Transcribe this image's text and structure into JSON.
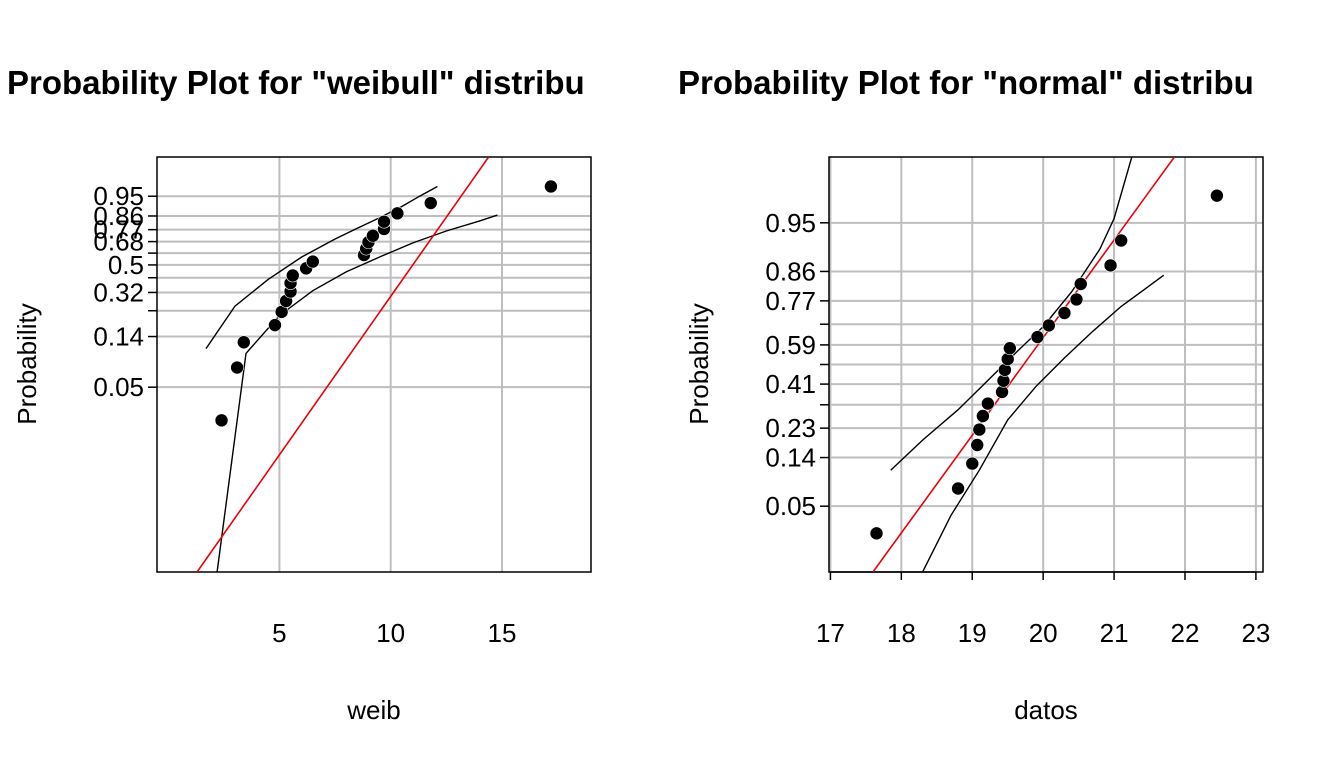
{
  "chart_data": [
    {
      "type": "scatter",
      "title": "Probability Plot for \"weibull\" distribu",
      "xlabel": "weib",
      "ylabel": "Probability",
      "x_ticks": [
        5,
        10,
        15
      ],
      "x_grid": [
        5,
        10,
        15
      ],
      "xlim": [
        -0.5,
        19
      ],
      "y_scale": "weibull",
      "ylim": [
        0.0,
        0.999
      ],
      "y_tick_labels": [
        "0.05",
        "0.14",
        "0.32",
        "0.5",
        "0.68",
        "0.77",
        "0.86",
        "0.95"
      ],
      "y_tick_values": [
        0.05,
        0.14,
        0.32,
        0.5,
        0.68,
        0.77,
        0.86,
        0.95
      ],
      "y_unlabeled_ticks": [
        0.23,
        0.41,
        0.59
      ],
      "grid": true,
      "points": [
        {
          "x": 2.4,
          "y": 0.025
        },
        {
          "x": 3.1,
          "y": 0.075
        },
        {
          "x": 3.4,
          "y": 0.125
        },
        {
          "x": 4.8,
          "y": 0.175
        },
        {
          "x": 5.1,
          "y": 0.225
        },
        {
          "x": 5.3,
          "y": 0.275
        },
        {
          "x": 5.5,
          "y": 0.325
        },
        {
          "x": 5.5,
          "y": 0.375
        },
        {
          "x": 5.6,
          "y": 0.425
        },
        {
          "x": 6.2,
          "y": 0.475
        },
        {
          "x": 6.5,
          "y": 0.525
        },
        {
          "x": 8.8,
          "y": 0.575
        },
        {
          "x": 8.9,
          "y": 0.625
        },
        {
          "x": 9.0,
          "y": 0.675
        },
        {
          "x": 9.2,
          "y": 0.725
        },
        {
          "x": 9.7,
          "y": 0.775
        },
        {
          "x": 9.7,
          "y": 0.825
        },
        {
          "x": 10.3,
          "y": 0.875
        },
        {
          "x": 11.8,
          "y": 0.925
        },
        {
          "x": 17.2,
          "y": 0.975
        }
      ],
      "fit_line": {
        "color": "#e8000b",
        "x": [
          1.3,
          14.4
        ],
        "y": [
          0.0,
          0.999
        ]
      },
      "confidence_bands": [
        {
          "x": [
            1.7,
            3.0,
            4.5,
            6.0,
            7.5,
            8.5,
            9.5,
            10.5,
            11.3,
            12.1
          ],
          "y": [
            0.11,
            0.25,
            0.4,
            0.56,
            0.7,
            0.78,
            0.85,
            0.91,
            0.95,
            0.975
          ]
        },
        {
          "x": [
            2.2,
            3.5,
            5.0,
            6.5,
            8.0,
            9.5,
            11.0,
            12.5,
            14.0,
            14.8
          ],
          "y": [
            0.0,
            0.1,
            0.21,
            0.33,
            0.45,
            0.56,
            0.67,
            0.76,
            0.83,
            0.865
          ]
        }
      ]
    },
    {
      "type": "scatter",
      "title": "Probability Plot for \"normal\" distribu",
      "xlabel": "datos",
      "ylabel": "Probability",
      "x_ticks": [
        17,
        18,
        19,
        20,
        21,
        22,
        23
      ],
      "x_grid": [
        17,
        18,
        19,
        20,
        21,
        22,
        23
      ],
      "xlim": [
        16.98,
        23.1
      ],
      "y_scale": "normal",
      "ylim": [
        0.008,
        0.992
      ],
      "y_tick_labels": [
        "0.05",
        "0.14",
        "0.23",
        "0.41",
        "0.59",
        "0.77",
        "0.86",
        "0.95"
      ],
      "y_tick_values": [
        0.05,
        0.14,
        0.23,
        0.41,
        0.59,
        0.77,
        0.86,
        0.95
      ],
      "y_unlabeled_ticks": [
        0.32,
        0.5,
        0.68
      ],
      "grid": true,
      "points": [
        {
          "x": 17.65,
          "y": 0.025
        },
        {
          "x": 18.8,
          "y": 0.075
        },
        {
          "x": 19.0,
          "y": 0.125
        },
        {
          "x": 19.07,
          "y": 0.175
        },
        {
          "x": 19.1,
          "y": 0.225
        },
        {
          "x": 19.15,
          "y": 0.275
        },
        {
          "x": 19.22,
          "y": 0.325
        },
        {
          "x": 19.42,
          "y": 0.375
        },
        {
          "x": 19.44,
          "y": 0.425
        },
        {
          "x": 19.46,
          "y": 0.475
        },
        {
          "x": 19.5,
          "y": 0.525
        },
        {
          "x": 19.53,
          "y": 0.575
        },
        {
          "x": 19.92,
          "y": 0.625
        },
        {
          "x": 20.08,
          "y": 0.675
        },
        {
          "x": 20.3,
          "y": 0.725
        },
        {
          "x": 20.47,
          "y": 0.775
        },
        {
          "x": 20.53,
          "y": 0.825
        },
        {
          "x": 20.95,
          "y": 0.875
        },
        {
          "x": 21.1,
          "y": 0.925
        },
        {
          "x": 22.45,
          "y": 0.975
        }
      ],
      "fit_line": {
        "color": "#e8000b",
        "x": [
          17.6,
          21.85
        ],
        "y": [
          0.008,
          0.992
        ]
      },
      "confidence_bands": [
        {
          "x": [
            17.85,
            18.3,
            18.8,
            19.2,
            19.6,
            20.0,
            20.4,
            20.8,
            21.0,
            21.25
          ],
          "y": [
            0.11,
            0.19,
            0.3,
            0.42,
            0.55,
            0.67,
            0.8,
            0.91,
            0.955,
            0.992
          ]
        },
        {
          "x": [
            18.3,
            18.7,
            19.1,
            19.5,
            19.9,
            20.3,
            20.7,
            21.1,
            21.5,
            21.7
          ],
          "y": [
            0.008,
            0.04,
            0.11,
            0.26,
            0.4,
            0.53,
            0.65,
            0.75,
            0.82,
            0.85
          ]
        }
      ]
    }
  ]
}
